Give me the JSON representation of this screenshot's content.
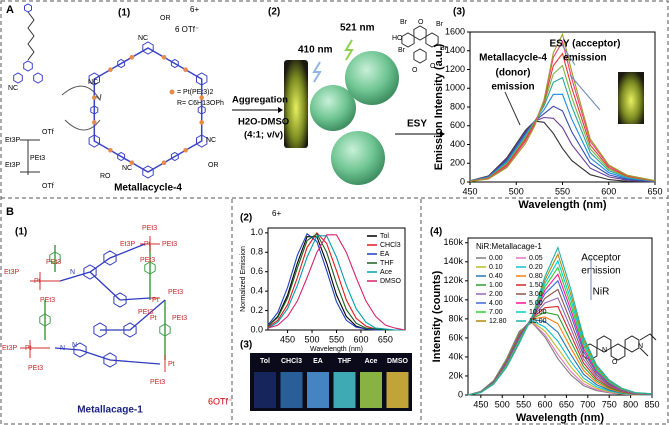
{
  "panel_a": {
    "label": "A",
    "sub1": "(1)",
    "sub2": "(2)",
    "sub3": "(3)",
    "charge": "6+",
    "counterion": "6 OTf⁻",
    "pt_legend": "= Pt(PEt3)2",
    "r_group": "R= C6H13OPh",
    "name": "Metallacycle-4",
    "precursor_atoms": [
      "NC",
      "Et3P",
      "OTf",
      "Et3P",
      "PEt3",
      "OTf"
    ],
    "cycle_atoms": [
      "OR",
      "NC",
      "NC",
      "RO",
      "NC",
      "NC",
      "OR"
    ],
    "excitation": "410 nm",
    "emission_wl": "521 nm",
    "aggregation": "Aggregation",
    "solvent": "H2O-DMSO",
    "ratio": "(4:1; v/v)",
    "esy": "ESY",
    "esy_atoms": [
      "HO",
      "Br",
      "O",
      "Br",
      "Br",
      "Br",
      "O",
      "O"
    ]
  },
  "panel_b": {
    "label": "B",
    "sub1": "(1)",
    "sub2": "(2)",
    "sub3": "(3)",
    "sub4": "(4)",
    "charge": "6+",
    "counterion": "6OTf⁻",
    "name": "Metallacage-1",
    "cage_atoms": [
      "PEt3",
      "Et3P",
      "Pt",
      "PEt3",
      "PEt3",
      "Pt",
      "PEt3",
      "N",
      "N",
      "PEt3",
      "Pt",
      "PEt3",
      "Et3P",
      "Pt",
      "PEt3",
      "PEt3",
      "Pt",
      "PEt3",
      "N",
      "Et3P",
      "Pt",
      "PEt3"
    ],
    "solvents": [
      "Tol",
      "CHCl3",
      "EA",
      "THF",
      "Ace",
      "DMSO"
    ],
    "nir_atoms": [
      "N",
      "O",
      "N"
    ]
  },
  "chart_data": [
    {
      "type": "line",
      "x_label": "Wavelength (nm)",
      "y_label": "Emission Intensity (a.u.)",
      "x": [
        450,
        470,
        490,
        510,
        520,
        530,
        540,
        550,
        560,
        580,
        600,
        620,
        650
      ],
      "xlim": [
        450,
        650
      ],
      "xticks": [
        450,
        500,
        550,
        600,
        650
      ],
      "ylim": [
        0,
        1600
      ],
      "yticks": [
        0,
        200,
        400,
        600,
        800,
        1000,
        1200,
        1400,
        1600
      ],
      "annotations": [
        "Metallacycle-4",
        "(donor)",
        "emission",
        "ESY (acceptor)",
        "emission"
      ],
      "series": [
        {
          "color": "#333333",
          "values": [
            13,
            65,
            260,
            553,
            650,
            637,
            520,
            358,
            228,
            78,
            26,
            7,
            0
          ]
        },
        {
          "color": "#6a3d9a",
          "values": [
            12,
            60,
            245,
            535,
            650,
            688,
            680,
            580,
            398,
            147,
            54,
            19,
            3
          ]
        },
        {
          "color": "#3949ab",
          "values": [
            11,
            56,
            233,
            521,
            650,
            729,
            808,
            758,
            534,
            202,
            76,
            29,
            5
          ]
        },
        {
          "color": "#1e88e5",
          "values": [
            10,
            52,
            221,
            507,
            650,
            770,
            936,
            936,
            670,
            257,
            99,
            38,
            7
          ]
        },
        {
          "color": "#26a69a",
          "values": [
            10,
            48,
            209,
            493,
            650,
            810,
            1064,
            1114,
            806,
            313,
            121,
            48,
            9
          ]
        },
        {
          "color": "#7cb342",
          "values": [
            9,
            44,
            196,
            474,
            640,
            831,
            1152,
            1242,
            904,
            353,
            138,
            54,
            10
          ]
        },
        {
          "color": "#e53935",
          "values": [
            8,
            40,
            183,
            455,
            630,
            852,
            1240,
            1370,
            1003,
            393,
            154,
            62,
            12
          ]
        },
        {
          "color": "#ec407a",
          "values": [
            7,
            36,
            170,
            436,
            620,
            873,
            1328,
            1498,
            1101,
            433,
            170,
            69,
            13
          ]
        },
        {
          "color": "#9e9d24",
          "values": [
            6,
            32,
            156,
            412,
            600,
            874,
            1376,
            1576,
            1176,
            458,
            181,
            73,
            14
          ]
        }
      ]
    },
    {
      "type": "line",
      "x_label": "Wavelength (nm)",
      "y_label": "Normalized Emission",
      "x": [
        410,
        430,
        450,
        470,
        490,
        510,
        530,
        550,
        570,
        590,
        610,
        630,
        650,
        670,
        690
      ],
      "xlim": [
        410,
        690
      ],
      "xticks": [
        450,
        500,
        550,
        600,
        650
      ],
      "ylim": [
        0,
        1.05
      ],
      "yticks": [
        {
          "value": 0,
          "label": "0.0"
        },
        0.2,
        0.4,
        0.6,
        0.8,
        {
          "value": 1,
          "label": "1.0"
        }
      ],
      "legend": "upper right",
      "series": [
        {
          "name": "Tol",
          "color": "#000000",
          "values": [
            0.04,
            0.14,
            0.36,
            0.69,
            0.96,
            0.96,
            0.69,
            0.36,
            0.14,
            0.04,
            0.01,
            0,
            0,
            0,
            0
          ]
        },
        {
          "name": "CHCl3",
          "color": "#e41a1c",
          "values": [
            0.03,
            0.1,
            0.26,
            0.54,
            0.85,
            1.0,
            0.89,
            0.61,
            0.31,
            0.12,
            0.04,
            0.01,
            0,
            0,
            0
          ]
        },
        {
          "name": "EA",
          "color": "#1f3fbf",
          "values": [
            0.05,
            0.18,
            0.44,
            0.77,
            0.99,
            0.91,
            0.61,
            0.29,
            0.1,
            0.03,
            0.01,
            0,
            0,
            0,
            0
          ]
        },
        {
          "name": "THF",
          "color": "#1b5e20",
          "values": [
            0.04,
            0.13,
            0.33,
            0.64,
            0.92,
            0.99,
            0.8,
            0.48,
            0.21,
            0.07,
            0.02,
            0.01,
            0,
            0,
            0
          ]
        },
        {
          "name": "Ace",
          "color": "#00a0b0",
          "values": [
            0.02,
            0.08,
            0.22,
            0.46,
            0.75,
            0.97,
            0.97,
            0.75,
            0.46,
            0.22,
            0.08,
            0.02,
            0.01,
            0,
            0
          ]
        },
        {
          "name": "DMSO",
          "color": "#d6246e",
          "values": [
            0.02,
            0.05,
            0.14,
            0.3,
            0.54,
            0.8,
            0.98,
            0.98,
            0.8,
            0.54,
            0.3,
            0.14,
            0.05,
            0.02,
            0
          ]
        }
      ]
    },
    {
      "type": "line",
      "x_label": "Wavelength (nm)",
      "y_label": "Intensity (counts)",
      "x": [
        420,
        450,
        480,
        510,
        540,
        570,
        600,
        630,
        660,
        690,
        720,
        750,
        780,
        810,
        850
      ],
      "xlim": [
        420,
        850
      ],
      "xticks": [
        450,
        500,
        550,
        600,
        650,
        700,
        750,
        800,
        850
      ],
      "ylim": [
        0,
        165000
      ],
      "yticks": [
        0,
        {
          "value": 20000,
          "label": "20k"
        },
        {
          "value": 40000,
          "label": "40k"
        },
        {
          "value": 60000,
          "label": "60k"
        },
        {
          "value": 80000,
          "label": "80k"
        },
        {
          "value": 100000,
          "label": "100k"
        },
        {
          "value": 120000,
          "label": "120k"
        },
        {
          "value": 140000,
          "label": "140k"
        },
        {
          "value": 160000,
          "label": "160k"
        }
      ],
      "legend": "upper left",
      "legend_title": "NiR:Metallacage-1",
      "annotations": [
        "Acceptor",
        "emission",
        "NiR"
      ],
      "series": [
        {
          "name": "0.00",
          "color": "#7f7f7f",
          "values": [
            0,
            3800,
            15200,
            38000,
            66900,
            76000,
            60800,
            38000,
            21300,
            9900,
            4600,
            2300,
            800,
            0,
            0
          ]
        },
        {
          "name": "0.05",
          "color": "#e377c2",
          "values": [
            0,
            3750,
            15050,
            37650,
            66400,
            76250,
            63250,
            42500,
            24750,
            11850,
            5600,
            2800,
            1000,
            100,
            50
          ]
        },
        {
          "name": "0.10",
          "color": "#bcbd22",
          "values": [
            0,
            3700,
            14920,
            37360,
            66080,
            77000,
            67000,
            49000,
            29720,
            14660,
            7080,
            3540,
            1340,
            240,
            120
          ]
        },
        {
          "name": "0.20",
          "color": "#17becf",
          "values": [
            0,
            3650,
            14800,
            37100,
            65840,
            78000,
            71400,
            56500,
            35440,
            17890,
            8780,
            4390,
            1730,
            400,
            200
          ]
        },
        {
          "name": "0.40",
          "color": "#1f77b4",
          "values": [
            0,
            3600,
            14700,
            36900,
            65760,
            79500,
            77100,
            66000,
            42660,
            21960,
            10920,
            5460,
            2220,
            600,
            300
          ]
        },
        {
          "name": "0.80",
          "color": "#ff7f0e",
          "values": [
            0,
            3500,
            14400,
            36200,
            64800,
            80000,
            82000,
            75000,
            49600,
            25900,
            13000,
            6500,
            2700,
            800,
            400
          ]
        },
        {
          "name": "1.00",
          "color": "#2ca02c",
          "values": [
            0,
            3400,
            14100,
            35500,
            63840,
            80500,
            86900,
            84000,
            56540,
            29840,
            15080,
            7540,
            3180,
            1000,
            500
          ]
        },
        {
          "name": "1.50",
          "color": "#d62728",
          "values": [
            0,
            3300,
            13800,
            34800,
            62880,
            81000,
            91800,
            93000,
            63480,
            33780,
            17160,
            8580,
            3660,
            1200,
            600
          ]
        },
        {
          "name": "2.00",
          "color": "#9467bd",
          "values": [
            0,
            3200,
            13500,
            34100,
            61920,
            81500,
            96700,
            102000,
            70420,
            37720,
            19240,
            9620,
            4140,
            1400,
            700
          ]
        },
        {
          "name": "3.00",
          "color": "#8c564b",
          "values": [
            0,
            3100,
            13200,
            33400,
            60960,
            82000,
            101600,
            111000,
            77360,
            41660,
            21320,
            10660,
            4620,
            1600,
            800
          ]
        },
        {
          "name": "4.00",
          "color": "#4169e1",
          "values": [
            0,
            3000,
            12900,
            32700,
            60000,
            82500,
            106500,
            120000,
            84300,
            45600,
            23400,
            11700,
            5100,
            1800,
            900
          ]
        },
        {
          "name": "5.00",
          "color": "#ff1493",
          "values": [
            0,
            2900,
            12580,
            31940,
            58880,
            82500,
            110100,
            127000,
            89740,
            48700,
            25040,
            12520,
            5480,
            1960,
            980
          ]
        },
        {
          "name": "7.00",
          "color": "#32cd32",
          "values": [
            0,
            2800,
            12260,
            31180,
            57760,
            82500,
            113700,
            134000,
            95180,
            51800,
            26680,
            13340,
            5860,
            2120,
            1060
          ]
        },
        {
          "name": "10.00",
          "color": "#00ced1",
          "values": [
            0,
            2700,
            11940,
            30420,
            56640,
            82500,
            117300,
            141000,
            100620,
            54900,
            28320,
            14160,
            6240,
            2280,
            1140
          ]
        },
        {
          "name": "12.80",
          "color": "#b8860b",
          "values": [
            0,
            2600,
            11620,
            29660,
            55520,
            82500,
            120900,
            148000,
            106060,
            58000,
            29960,
            14980,
            6620,
            2440,
            1220
          ]
        },
        {
          "name": "15.00",
          "color": "#20b2aa",
          "values": [
            0,
            2500,
            11300,
            28900,
            54400,
            82500,
            124500,
            155000,
            111500,
            61100,
            31600,
            15800,
            7000,
            2600,
            1300
          ]
        }
      ]
    }
  ]
}
